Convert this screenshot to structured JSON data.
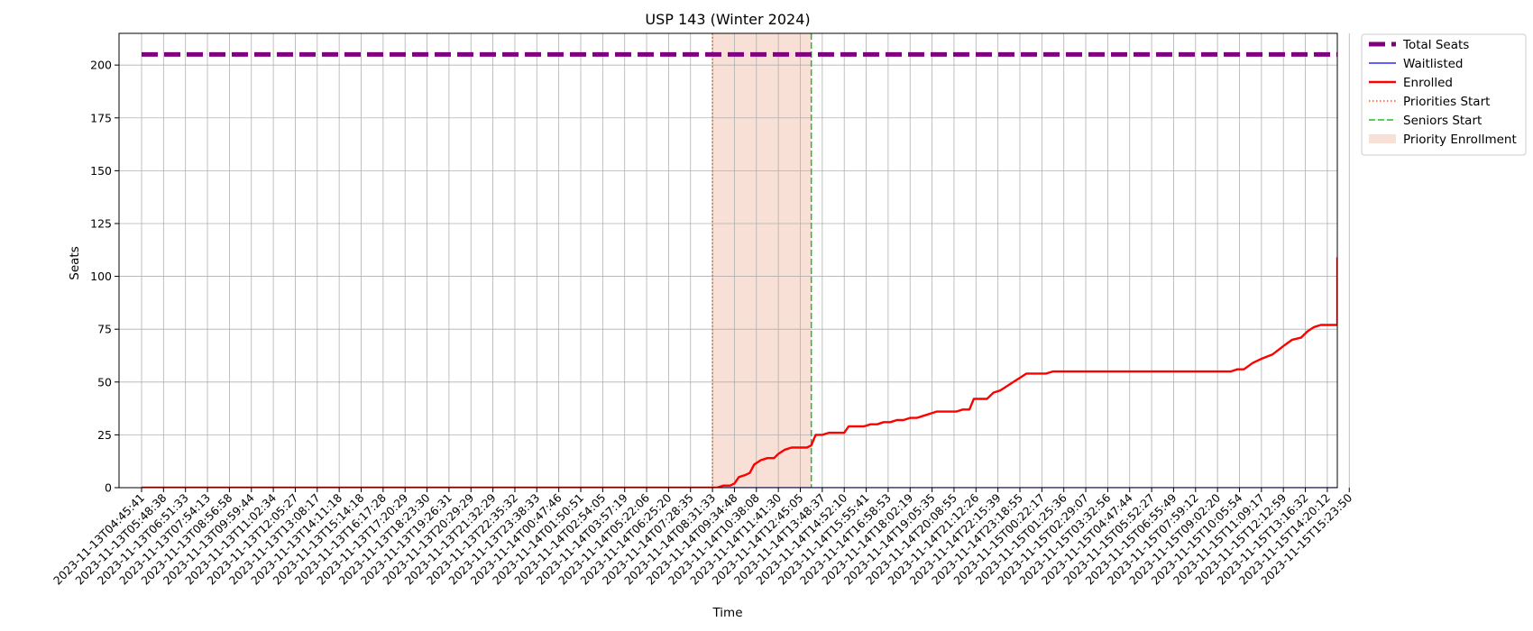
{
  "chart_data": {
    "type": "line",
    "title": "USP 143 (Winter 2024)",
    "xlabel": "Time",
    "ylabel": "Seats",
    "ylim": [
      0,
      215
    ],
    "yticks": [
      0,
      25,
      50,
      75,
      100,
      125,
      150,
      175,
      200
    ],
    "grid": true,
    "legend_position": "outside-top-right",
    "x": [
      "2023-11-13T04:45:41",
      "2023-11-13T05:48:38",
      "2023-11-13T06:51:33",
      "2023-11-13T07:54:13",
      "2023-11-13T08:56:58",
      "2023-11-13T09:59:44",
      "2023-11-13T11:02:34",
      "2023-11-13T12:05:27",
      "2023-11-13T13:08:17",
      "2023-11-13T14:11:18",
      "2023-11-13T15:14:18",
      "2023-11-13T16:17:28",
      "2023-11-13T17:20:29",
      "2023-11-13T18:23:30",
      "2023-11-13T19:26:31",
      "2023-11-13T20:29:29",
      "2023-11-13T21:32:29",
      "2023-11-13T22:35:32",
      "2023-11-13T23:38:33",
      "2023-11-14T00:47:46",
      "2023-11-14T01:50:51",
      "2023-11-14T02:54:05",
      "2023-11-14T03:57:19",
      "2023-11-14T05:22:06",
      "2023-11-14T06:25:20",
      "2023-11-14T07:28:35",
      "2023-11-14T08:31:33",
      "2023-11-14T09:34:48",
      "2023-11-14T10:38:08",
      "2023-11-14T11:41:30",
      "2023-11-14T12:45:05",
      "2023-11-14T13:48:37",
      "2023-11-14T14:52:10",
      "2023-11-14T15:55:41",
      "2023-11-14T16:58:53",
      "2023-11-14T18:02:19",
      "2023-11-14T19:05:35",
      "2023-11-14T20:08:55",
      "2023-11-14T21:12:26",
      "2023-11-14T22:15:39",
      "2023-11-14T23:18:55",
      "2023-11-15T00:22:17",
      "2023-11-15T01:25:36",
      "2023-11-15T02:29:07",
      "2023-11-15T03:32:56",
      "2023-11-15T04:47:44",
      "2023-11-15T05:52:27",
      "2023-11-15T06:55:49",
      "2023-11-15T07:59:12",
      "2023-11-15T09:02:20",
      "2023-11-15T10:05:54",
      "2023-11-15T11:09:17",
      "2023-11-15T12:12:59",
      "2023-11-15T13:16:32",
      "2023-11-15T14:20:12",
      "2023-11-15T15:23:50"
    ],
    "series": [
      {
        "name": "Total Seats",
        "style": "dashed",
        "color": "#800080",
        "points": [
          [
            0,
            205
          ],
          [
            56.4,
            205
          ]
        ]
      },
      {
        "name": "Waitlisted",
        "style": "solid",
        "color": "#0000ff",
        "points": [
          [
            0,
            0
          ],
          [
            56.4,
            0
          ]
        ]
      },
      {
        "name": "Enrolled",
        "style": "solid",
        "color": "#ff0000",
        "points": [
          [
            0,
            0
          ],
          [
            26.0,
            0
          ],
          [
            26.2,
            0
          ],
          [
            26.5,
            1
          ],
          [
            26.8,
            1
          ],
          [
            27.0,
            2
          ],
          [
            27.2,
            5
          ],
          [
            27.5,
            6
          ],
          [
            27.7,
            7
          ],
          [
            27.9,
            11
          ],
          [
            28.2,
            13
          ],
          [
            28.5,
            14
          ],
          [
            28.8,
            14
          ],
          [
            29.0,
            16
          ],
          [
            29.3,
            18
          ],
          [
            29.6,
            19
          ],
          [
            30.0,
            19
          ],
          [
            30.3,
            19
          ],
          [
            30.5,
            20
          ],
          [
            30.7,
            25
          ],
          [
            31.0,
            25
          ],
          [
            31.3,
            26
          ],
          [
            31.7,
            26
          ],
          [
            32.0,
            26
          ],
          [
            32.2,
            29
          ],
          [
            32.6,
            29
          ],
          [
            32.9,
            29
          ],
          [
            33.2,
            30
          ],
          [
            33.5,
            30
          ],
          [
            33.8,
            31
          ],
          [
            34.1,
            31
          ],
          [
            34.4,
            32
          ],
          [
            34.7,
            32
          ],
          [
            35.0,
            33
          ],
          [
            35.3,
            33
          ],
          [
            35.6,
            34
          ],
          [
            35.9,
            35
          ],
          [
            36.2,
            36
          ],
          [
            36.5,
            36
          ],
          [
            36.8,
            36
          ],
          [
            37.1,
            36
          ],
          [
            37.4,
            37
          ],
          [
            37.7,
            37
          ],
          [
            37.9,
            42
          ],
          [
            38.2,
            42
          ],
          [
            38.5,
            42
          ],
          [
            38.8,
            45
          ],
          [
            39.1,
            46
          ],
          [
            39.4,
            48
          ],
          [
            39.7,
            50
          ],
          [
            40.0,
            52
          ],
          [
            40.3,
            54
          ],
          [
            40.6,
            54
          ],
          [
            40.9,
            54
          ],
          [
            41.2,
            54
          ],
          [
            41.5,
            55
          ],
          [
            42.0,
            55
          ],
          [
            43.0,
            55
          ],
          [
            44.0,
            55
          ],
          [
            45.0,
            55
          ],
          [
            46.0,
            55
          ],
          [
            47.0,
            55
          ],
          [
            48.0,
            55
          ],
          [
            49.0,
            55
          ],
          [
            49.6,
            55
          ],
          [
            49.9,
            56
          ],
          [
            50.2,
            56
          ],
          [
            50.6,
            59
          ],
          [
            51.0,
            61
          ],
          [
            51.5,
            63
          ],
          [
            52.0,
            67
          ],
          [
            52.4,
            70
          ],
          [
            52.8,
            71
          ],
          [
            53.1,
            74
          ],
          [
            53.4,
            76
          ],
          [
            53.7,
            77
          ],
          [
            54.0,
            77
          ],
          [
            54.6,
            77
          ],
          [
            54.9,
            80
          ],
          [
            55.3,
            82
          ],
          [
            55.6,
            84
          ],
          [
            55.9,
            89
          ],
          [
            56.2,
            90
          ],
          [
            56.5,
            93
          ],
          [
            56.8,
            95
          ],
          [
            57.2,
            98
          ],
          [
            57.5,
            101
          ],
          [
            57.8,
            102
          ],
          [
            58.1,
            109
          ]
        ]
      }
    ],
    "vertical_lines": [
      {
        "name": "Priorities Start",
        "x": 26.0,
        "style": "dotted",
        "color": "#e4572e"
      },
      {
        "name": "Seniors Start",
        "x": 30.5,
        "style": "dashed",
        "color": "#22bb22"
      }
    ],
    "shaded_regions": [
      {
        "name": "Priority Enrollment",
        "x0": 26.0,
        "x1": 30.5,
        "color": "#f3c6b5"
      }
    ]
  },
  "legend": {
    "items": [
      {
        "label": "Total Seats",
        "color": "#800080",
        "style": "thick-dashed"
      },
      {
        "label": "Waitlisted",
        "color": "#0000ff",
        "style": "thin-solid"
      },
      {
        "label": "Enrolled",
        "color": "#ff0000",
        "style": "solid"
      },
      {
        "label": "Priorities Start",
        "color": "#e4572e",
        "style": "dotted"
      },
      {
        "label": "Seniors Start",
        "color": "#22bb22",
        "style": "dashed"
      },
      {
        "label": "Priority Enrollment",
        "color": "#f3c6b5",
        "style": "patch"
      }
    ]
  }
}
